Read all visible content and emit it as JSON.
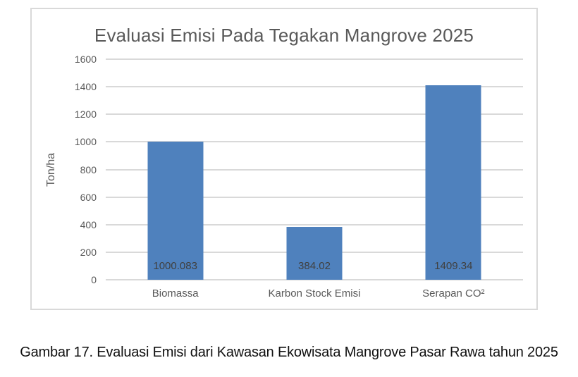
{
  "chart": {
    "title": "Evaluasi Emisi Pada Tegakan Mangrove 2025",
    "ylabel": "Ton/ha"
  },
  "caption": "Gambar 17. Evaluasi Emisi dari Kawasan Ekowisata Mangrove Pasar Rawa tahun 2025",
  "chart_data": {
    "type": "bar",
    "title": "Evaluasi Emisi Pada Tegakan Mangrove 2025",
    "categories": [
      "Biomassa",
      "Karbon Stock Emisi",
      "Serapan CO²"
    ],
    "values": [
      1000.083,
      384.02,
      1409.34
    ],
    "data_labels": [
      "1000.083",
      "384.02",
      "1409.34"
    ],
    "xlabel": "",
    "ylabel": "Ton/ha",
    "ylim": [
      0,
      1600
    ],
    "ytick_step": 200,
    "grid": true,
    "legend": false,
    "colors": {
      "bar": "#4f81bd",
      "gridline": "#d9d9d9",
      "axis_text": "#595959",
      "data_label": "#404040",
      "frame_border": "#d9d9d9",
      "background": "#ffffff"
    }
  }
}
